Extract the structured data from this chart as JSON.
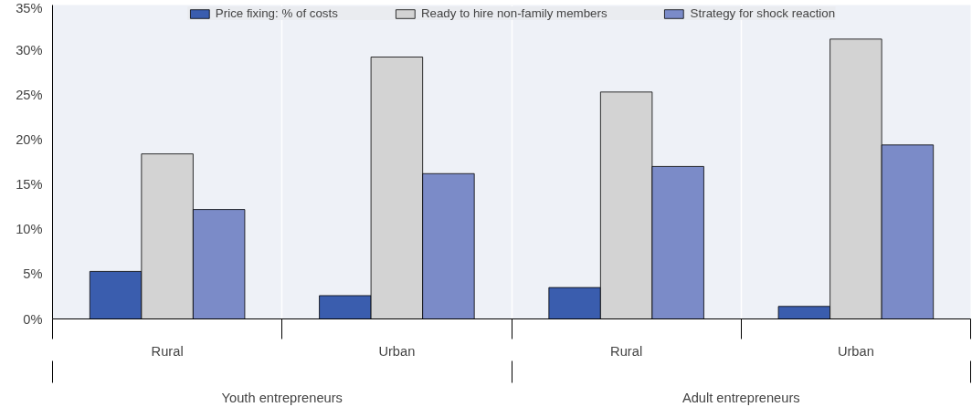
{
  "chart_data": {
    "type": "bar",
    "categories": [
      "Rural",
      "Urban",
      "Rural",
      "Urban"
    ],
    "series": [
      {
        "name": "Price fixing: % of costs",
        "color": "#3a5dae",
        "values": [
          5.3,
          2.6,
          3.5,
          1.4
        ]
      },
      {
        "name": "Ready to hire non-family members",
        "color": "#d3d3d3",
        "values": [
          18.4,
          29.2,
          25.3,
          31.2
        ]
      },
      {
        "name": "Strategy for shock reaction",
        "color": "#7b8bc8",
        "values": [
          12.2,
          16.2,
          17.0,
          19.4
        ]
      }
    ],
    "annotations": [
      "Youth entrepreneurs",
      "Adult entrepreneurs"
    ],
    "ylim": [
      0,
      35
    ],
    "yticks": [
      {
        "value": 0,
        "label": "0%"
      },
      {
        "value": 5,
        "label": "5%"
      },
      {
        "value": 10,
        "label": "10%"
      },
      {
        "value": 15,
        "label": "15%"
      },
      {
        "value": 20,
        "label": "20%"
      },
      {
        "value": 25,
        "label": "25%"
      },
      {
        "value": 30,
        "label": "30%"
      },
      {
        "value": 35,
        "label": "35%"
      }
    ],
    "grid": "x",
    "legend": "top"
  }
}
